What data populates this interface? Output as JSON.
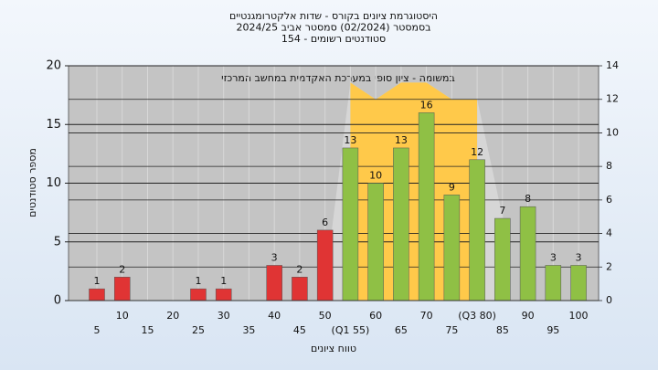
{
  "chart_data": {
    "type": "bar",
    "title_lines": [
      "היסטוגרמת ציונים בקורס - שדות אלקטרומגנטיים",
      "בסמסטר  (02/2024)  סמסטר אביב 2024/25",
      "סטודנטים רשומים - 154"
    ],
    "annotation": "במשומה - ציון סופי במערכת האקדמית במחשב המרכזי",
    "x_label": "טווח ציונים",
    "y_label": "מספר סטודנטים",
    "categories": [
      "5",
      "10",
      "15",
      "20",
      "25",
      "30",
      "35",
      "40",
      "45",
      "50",
      "(Q1 55)",
      "60",
      "65",
      "70",
      "75",
      "(Q3 80)",
      "85",
      "90",
      "95",
      "100"
    ],
    "values": [
      1,
      2,
      0,
      0,
      1,
      1,
      0,
      3,
      2,
      6,
      13,
      10,
      13,
      16,
      9,
      12,
      7,
      8,
      3,
      3
    ],
    "colors": [
      "#e03434",
      "#e03434",
      "#e03434",
      "#e03434",
      "#e03434",
      "#e03434",
      "#e03434",
      "#e03434",
      "#e03434",
      "#e03434",
      "#8fc045",
      "#8fc045",
      "#8fc045",
      "#8fc045",
      "#8fc045",
      "#8fc045",
      "#8fc045",
      "#8fc045",
      "#8fc045",
      "#8fc045"
    ],
    "series": [
      {
        "type": "area",
        "axis": "y2",
        "color": "#d6d6d6",
        "values": [
          null,
          null,
          null,
          null,
          null,
          null,
          null,
          null,
          null,
          1,
          13,
          12,
          13,
          13,
          12,
          12,
          5,
          null,
          null,
          null
        ]
      },
      {
        "type": "area",
        "axis": "y2",
        "color": "#ffc94a",
        "values": [
          null,
          null,
          null,
          null,
          null,
          null,
          null,
          null,
          null,
          null,
          13,
          12,
          13,
          13,
          12,
          12,
          null,
          null,
          null,
          null
        ]
      }
    ],
    "ylim": [
      0,
      20
    ],
    "yticks": [
      0,
      5,
      10,
      15,
      20
    ],
    "y2lim": [
      0,
      14
    ],
    "y2ticks": [
      0,
      2,
      4,
      6,
      8,
      10,
      12,
      14
    ],
    "grid": true
  }
}
